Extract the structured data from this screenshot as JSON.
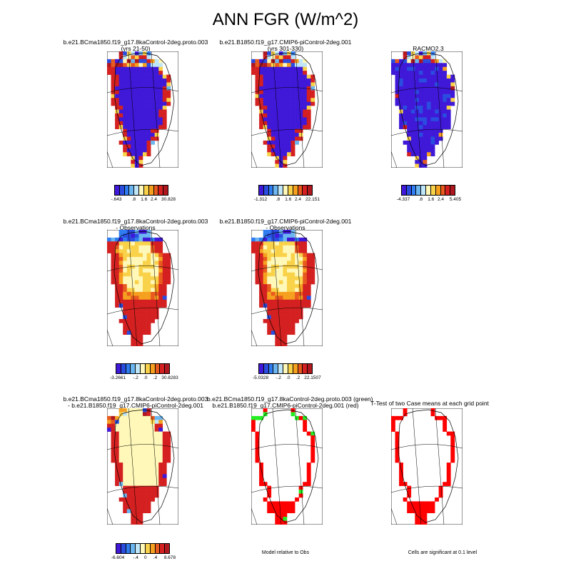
{
  "figure": {
    "title": "ANN FGR (W/m^2)"
  },
  "palettes": {
    "diverge": [
      "#3f18d8",
      "#2a4de0",
      "#2f7df0",
      "#6bb6f0",
      "#bfe6f8",
      "#fff8b8",
      "#f9d24a",
      "#f6a020",
      "#e85a1e",
      "#d42020",
      "#b01820"
    ]
  },
  "panels": [
    {
      "id": "p1",
      "title": [
        "b.e21.BCma1850.f19_g17.8kaControl-2deg.proto.003",
        "(yrs 21-50)"
      ],
      "colorbar": {
        "labels": [
          "-.643",
          ".8",
          "1.6",
          "2.4",
          "30.828"
        ]
      }
    },
    {
      "id": "p2",
      "title": [
        "b.e21.B1850.f19_g17.CMIP6-piControl-2deg.001",
        "(yrs 301-330)"
      ],
      "colorbar": {
        "labels": [
          "-1.312",
          ".8",
          "1.6",
          "2.4",
          "22.151"
        ]
      }
    },
    {
      "id": "p3",
      "title": [
        "RACMO2.3"
      ],
      "colorbar": {
        "labels": [
          "-4.337",
          ".8",
          "1.6",
          "2.4",
          "5.405"
        ]
      }
    },
    {
      "id": "p4",
      "title": [
        "b.e21.BCma1850.f19_g17.8kaControl-2deg.proto.003",
        "- Observations"
      ],
      "colorbar": {
        "labels": [
          "-3.2661",
          "-.2",
          ".0",
          ".2",
          "30.8283"
        ]
      }
    },
    {
      "id": "p5",
      "title": [
        "b.e21.B1850.f19_g17.CMIP6-piControl-2deg.001",
        "- Observations"
      ],
      "colorbar": {
        "labels": [
          "-5.0328",
          "-.2",
          ".0",
          ".2",
          "22.1507"
        ]
      }
    },
    {
      "id": "p6",
      "title": [
        "b.e21.BCma1850.f19_g17.8kaControl-2deg.proto.003",
        "- b.e21.B1850.f19_g17.CMIP6-piControl-2deg.001"
      ],
      "colorbar": {
        "labels": [
          "-6.604",
          "-.4",
          "0",
          ".4",
          "8.678"
        ]
      }
    },
    {
      "id": "p7",
      "title": [
        "b.e21.BCma1850.f19_g17.8kaControl-2deg.proto.003 (green)",
        "b.e21.B1850.f19_g17.CMIP6-piControl-2deg.001 (red)"
      ],
      "note": "Model relative to Obs"
    },
    {
      "id": "p8",
      "title": [
        "T-Test of two Case means at each grid point"
      ],
      "note": "Cells are significant at 0.1 level"
    }
  ]
}
